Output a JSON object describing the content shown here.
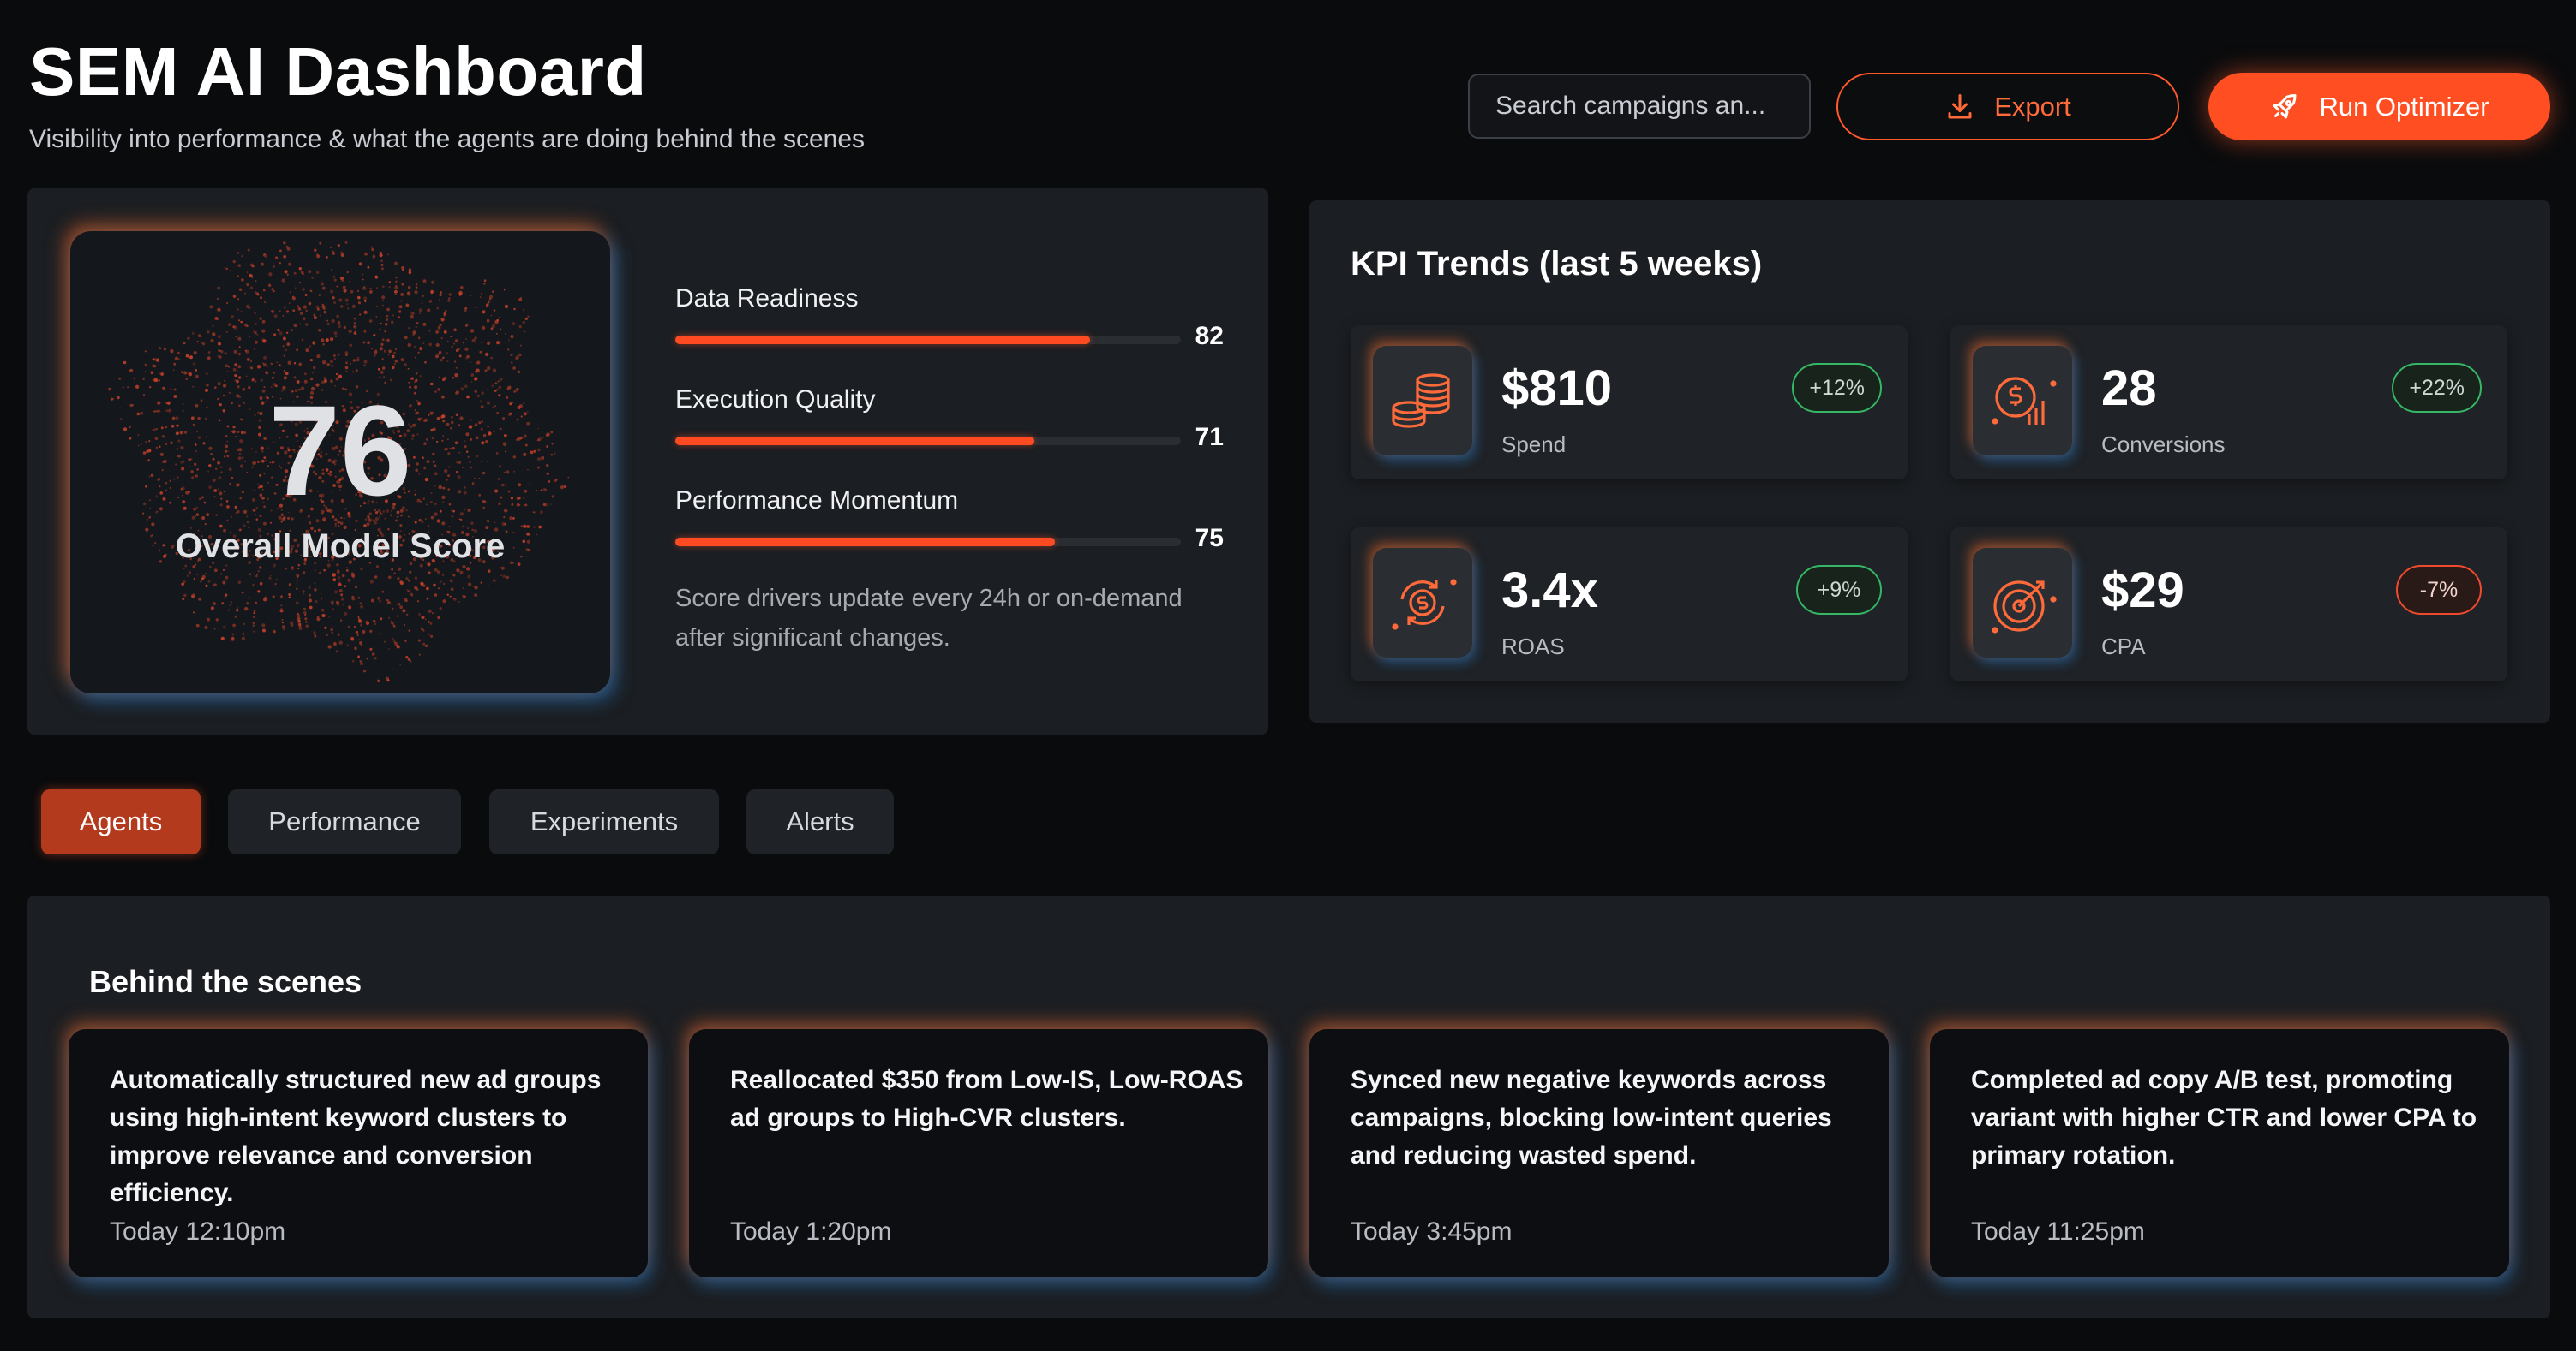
{
  "header": {
    "title": "SEM AI Dashboard",
    "subtitle": "Visibility into performance & what the agents are doing behind the scenes",
    "search_placeholder": "Search campaigns an...",
    "export_label": "Export",
    "export_icon": "download-icon",
    "run_label": "Run Optimizer",
    "run_icon": "rocket-icon",
    "accent_color": "#ff4f22"
  },
  "score": {
    "value": "76",
    "label": "Overall Model Score",
    "metrics": [
      {
        "label": "Data Readiness",
        "value": "82",
        "fill": 0.82
      },
      {
        "label": "Execution Quality",
        "value": "71",
        "fill": 0.71
      },
      {
        "label": "Performance Momentum",
        "value": "75",
        "fill": 0.75
      }
    ],
    "note": "Score drivers update every 24h or on-demand after significant changes."
  },
  "kpi": {
    "title": "KPI Trends (last 5 weeks)",
    "cards": [
      {
        "value": "$810",
        "label": "Spend",
        "change": "+12%",
        "trend": "positive",
        "icon": "coins-stack-icon"
      },
      {
        "value": "28",
        "label": "Conversions",
        "change": "+22%",
        "trend": "positive",
        "icon": "dollar-chart-icon"
      },
      {
        "value": "3.4x",
        "label": "ROAS",
        "change": "+9%",
        "trend": "positive",
        "icon": "dollar-cycle-icon"
      },
      {
        "value": "$29",
        "label": "CPA",
        "change": "-7%",
        "trend": "negative",
        "icon": "target-icon"
      }
    ]
  },
  "tabs": [
    {
      "label": "Agents",
      "active": true
    },
    {
      "label": "Performance",
      "active": false
    },
    {
      "label": "Experiments",
      "active": false
    },
    {
      "label": "Alerts",
      "active": false
    }
  ],
  "scenes": {
    "title": "Behind the scenes",
    "items": [
      {
        "text": "Automatically structured new ad groups using high-intent keyword clusters to improve relevance and conversion efficiency.",
        "time": "Today 12:10pm"
      },
      {
        "text": "Reallocated $350 from Low-IS, Low-ROAS ad groups to High-CVR clusters.",
        "time": "Today 1:20pm"
      },
      {
        "text": "Synced new negative keywords across campaigns, blocking low-intent queries and reducing wasted spend.",
        "time": "Today 3:45pm"
      },
      {
        "text": "Completed ad copy A/B test, promoting variant with higher CTR and lower CPA to primary rotation.",
        "time": "Today 11:25pm"
      }
    ]
  }
}
